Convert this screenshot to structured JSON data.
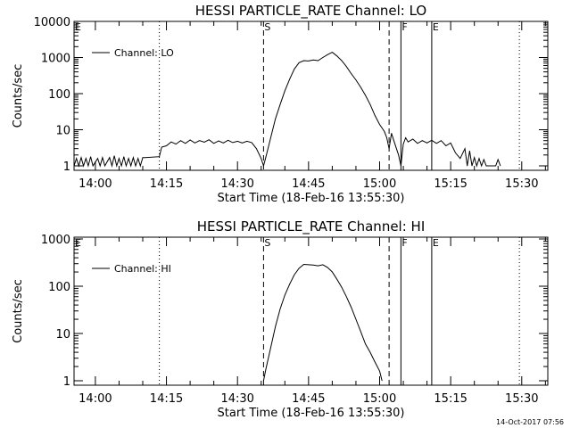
{
  "chart_data": [
    {
      "type": "line",
      "title": "HESSI PARTICLE_RATE Channel: LO",
      "xlabel": "Start Time (18-Feb-16 13:55:30)",
      "ylabel": "Counts/sec",
      "y_scale": "log",
      "ylim": [
        1,
        10000
      ],
      "xlim": [
        "13:55:30",
        "15:35:30"
      ],
      "xticks": [
        "14:00",
        "14:15",
        "14:30",
        "14:45",
        "15:00",
        "15:15",
        "15:30"
      ],
      "yticks": [
        "1",
        "10",
        "100",
        "1000",
        "10000"
      ],
      "legend": {
        "position": "top-left",
        "entries": [
          "Channel: LO"
        ]
      },
      "series": [
        {
          "name": "Channel: LO",
          "points": [
            [
              "13:55:30",
              1
            ],
            [
              "13:56:00",
              1.6
            ],
            [
              "13:56:30",
              1
            ],
            [
              "13:57:00",
              1.7
            ],
            [
              "13:57:30",
              1
            ],
            [
              "13:58:00",
              1.6
            ],
            [
              "13:58:30",
              1
            ],
            [
              "13:59:00",
              1.8
            ],
            [
              "13:59:30",
              1
            ],
            [
              "14:00:30",
              1.6
            ],
            [
              "14:01:00",
              1
            ],
            [
              "14:01:30",
              1.7
            ],
            [
              "14:02:00",
              1
            ],
            [
              "14:03:00",
              1.7
            ],
            [
              "14:03:30",
              1
            ],
            [
              "14:04:00",
              1.9
            ],
            [
              "14:04:30",
              1
            ],
            [
              "14:05:00",
              1.6
            ],
            [
              "14:05:30",
              1
            ],
            [
              "14:06:00",
              1.8
            ],
            [
              "14:06:30",
              1
            ],
            [
              "14:07:00",
              1.6
            ],
            [
              "14:07:30",
              1
            ],
            [
              "14:08:00",
              1.7
            ],
            [
              "14:08:30",
              1
            ],
            [
              "14:09:00",
              1.6
            ],
            [
              "14:09:30",
              1
            ],
            [
              "14:10:00",
              1.7
            ],
            [
              "14:10:30",
              1.7
            ],
            [
              "14:13:30",
              1.8
            ],
            [
              "14:14:00",
              3.3
            ],
            [
              "14:15:00",
              3.6
            ],
            [
              "14:16:00",
              4.6
            ],
            [
              "14:17:00",
              4.0
            ],
            [
              "14:18:00",
              5.0
            ],
            [
              "14:19:00",
              4.2
            ],
            [
              "14:20:00",
              5.2
            ],
            [
              "14:21:00",
              4.3
            ],
            [
              "14:22:00",
              5.0
            ],
            [
              "14:23:00",
              4.5
            ],
            [
              "14:24:00",
              5.3
            ],
            [
              "14:25:00",
              4.2
            ],
            [
              "14:26:00",
              4.9
            ],
            [
              "14:27:00",
              4.3
            ],
            [
              "14:28:00",
              5.1
            ],
            [
              "14:29:00",
              4.4
            ],
            [
              "14:30:00",
              4.8
            ],
            [
              "14:31:00",
              4.3
            ],
            [
              "14:32:00",
              4.8
            ],
            [
              "14:33:00",
              4.4
            ],
            [
              "14:34:00",
              3.0
            ],
            [
              "14:35:00",
              1.6
            ],
            [
              "14:35:30",
              1
            ],
            [
              "14:36:00",
              1.8
            ],
            [
              "14:37:00",
              6
            ],
            [
              "14:38:00",
              20
            ],
            [
              "14:39:00",
              50
            ],
            [
              "14:40:00",
              120
            ],
            [
              "14:41:00",
              250
            ],
            [
              "14:42:00",
              480
            ],
            [
              "14:43:00",
              720
            ],
            [
              "14:44:00",
              820
            ],
            [
              "14:45:00",
              800
            ],
            [
              "14:46:00",
              860
            ],
            [
              "14:47:00",
              820
            ],
            [
              "14:48:00",
              1000
            ],
            [
              "14:49:00",
              1200
            ],
            [
              "14:50:00",
              1400
            ],
            [
              "14:51:00",
              1100
            ],
            [
              "14:52:00",
              820
            ],
            [
              "14:53:00",
              560
            ],
            [
              "14:54:00",
              360
            ],
            [
              "14:55:00",
              240
            ],
            [
              "14:56:00",
              150
            ],
            [
              "14:57:00",
              90
            ],
            [
              "14:58:00",
              50
            ],
            [
              "14:59:00",
              25
            ],
            [
              "15:00:00",
              14
            ],
            [
              "15:01:00",
              9
            ],
            [
              "15:01:30",
              6
            ],
            [
              "15:02:00",
              3
            ],
            [
              "15:02:30",
              8
            ],
            [
              "15:03:00",
              5
            ],
            [
              "15:04:00",
              2
            ],
            [
              "15:04:30",
              1
            ],
            [
              "15:05:00",
              4
            ],
            [
              "15:05:30",
              6
            ],
            [
              "15:06:00",
              4.6
            ],
            [
              "15:07:00",
              5.5
            ],
            [
              "15:08:00",
              4.2
            ],
            [
              "15:09:00",
              5.0
            ],
            [
              "15:10:00",
              4.3
            ],
            [
              "15:11:00",
              5.1
            ],
            [
              "15:12:00",
              4.2
            ],
            [
              "15:13:00",
              5.0
            ],
            [
              "15:14:00",
              3.6
            ],
            [
              "15:15:00",
              4.3
            ],
            [
              "15:16:00",
              2.3
            ],
            [
              "15:17:00",
              1.6
            ],
            [
              "15:18:00",
              3
            ],
            [
              "15:18:30",
              1
            ],
            [
              "15:19:00",
              2.6
            ],
            [
              "15:19:30",
              1
            ],
            [
              "15:20:00",
              1.7
            ],
            [
              "15:20:30",
              1
            ],
            [
              "15:21:00",
              1.6
            ],
            [
              "15:21:30",
              1
            ],
            [
              "15:22:00",
              1.5
            ],
            [
              "15:22:30",
              1
            ],
            [
              "15:24:30",
              1
            ],
            [
              "15:25:00",
              1.5
            ],
            [
              "15:25:30",
              1
            ]
          ]
        }
      ],
      "flags": [
        {
          "label": "E",
          "time": "13:55:30",
          "style": "dashed"
        },
        {
          "label": "",
          "time": "14:13:30",
          "style": "dotted"
        },
        {
          "label": "S",
          "time": "14:35:30",
          "style": "dashed"
        },
        {
          "label": "",
          "time": "15:02:00",
          "style": "dashed"
        },
        {
          "label": "F",
          "time": "15:04:30",
          "style": "solid"
        },
        {
          "label": "E",
          "time": "15:11:00",
          "style": "solid"
        },
        {
          "label": "",
          "time": "15:29:30",
          "style": "dotted"
        }
      ]
    },
    {
      "type": "line",
      "title": "HESSI PARTICLE_RATE Channel: HI",
      "xlabel": "Start Time (18-Feb-16 13:55:30)",
      "ylabel": "Counts/sec",
      "y_scale": "log",
      "ylim": [
        1,
        1000
      ],
      "xlim": [
        "13:55:30",
        "15:35:30"
      ],
      "xticks": [
        "14:00",
        "14:15",
        "14:30",
        "14:45",
        "15:00",
        "15:15",
        "15:30"
      ],
      "yticks": [
        "1",
        "10",
        "100",
        "1000"
      ],
      "legend": {
        "position": "top-left",
        "entries": [
          "Channel: HI"
        ]
      },
      "series": [
        {
          "name": "Channel: HI",
          "points": [
            [
              "14:35:30",
              1
            ],
            [
              "14:36:00",
              1.8
            ],
            [
              "14:37:00",
              5
            ],
            [
              "14:38:00",
              14
            ],
            [
              "14:39:00",
              33
            ],
            [
              "14:40:00",
              65
            ],
            [
              "14:41:00",
              110
            ],
            [
              "14:42:00",
              175
            ],
            [
              "14:43:00",
              240
            ],
            [
              "14:44:00",
              290
            ],
            [
              "14:45:00",
              285
            ],
            [
              "14:46:00",
              280
            ],
            [
              "14:47:00",
              270
            ],
            [
              "14:48:00",
              285
            ],
            [
              "14:49:00",
              250
            ],
            [
              "14:50:00",
              200
            ],
            [
              "14:51:00",
              140
            ],
            [
              "14:52:00",
              95
            ],
            [
              "14:53:00",
              60
            ],
            [
              "14:54:00",
              36
            ],
            [
              "14:55:00",
              20
            ],
            [
              "14:56:00",
              11
            ],
            [
              "14:57:00",
              6
            ],
            [
              "14:58:00",
              4
            ],
            [
              "14:59:00",
              2.5
            ],
            [
              "15:00:00",
              1.6
            ],
            [
              "15:00:30",
              1
            ]
          ]
        }
      ],
      "flags": [
        {
          "label": "E",
          "time": "13:55:30",
          "style": "dashed"
        },
        {
          "label": "",
          "time": "14:13:30",
          "style": "dotted"
        },
        {
          "label": "S",
          "time": "14:35:30",
          "style": "dashed"
        },
        {
          "label": "",
          "time": "15:02:00",
          "style": "dashed"
        },
        {
          "label": "F",
          "time": "15:04:30",
          "style": "solid"
        },
        {
          "label": "E",
          "time": "15:11:00",
          "style": "solid"
        },
        {
          "label": "",
          "time": "15:29:30",
          "style": "dotted"
        }
      ]
    }
  ],
  "footer": {
    "timestamp": "14-Oct-2017 07:56"
  }
}
